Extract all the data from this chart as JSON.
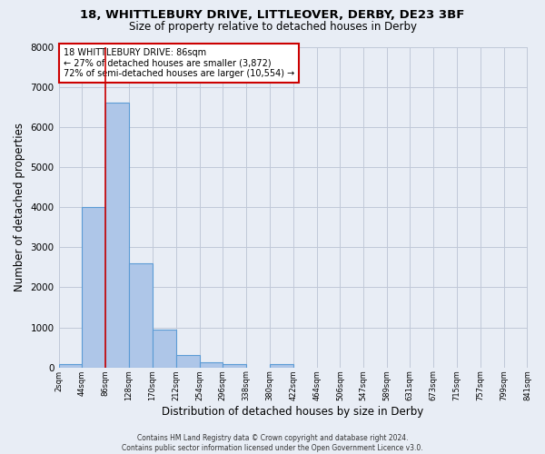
{
  "title": "18, WHITTLEBURY DRIVE, LITTLEOVER, DERBY, DE23 3BF",
  "subtitle": "Size of property relative to detached houses in Derby",
  "xlabel": "Distribution of detached houses by size in Derby",
  "ylabel": "Number of detached properties",
  "bin_edges": [
    2,
    44,
    86,
    128,
    170,
    212,
    254,
    296,
    338,
    380,
    422,
    464,
    506,
    547,
    589,
    631,
    673,
    715,
    757,
    799,
    841
  ],
  "bin_values": [
    75,
    4000,
    6600,
    2600,
    950,
    320,
    120,
    80,
    0,
    75,
    0,
    0,
    0,
    0,
    0,
    0,
    0,
    0,
    0,
    0
  ],
  "bar_color": "#aec6e8",
  "bar_edge_color": "#5b9bd5",
  "property_line_x": 86,
  "property_line_color": "#cc0000",
  "annotation_line1": "18 WHITTLEBURY DRIVE: 86sqm",
  "annotation_line2": "← 27% of detached houses are smaller (3,872)",
  "annotation_line3": "72% of semi-detached houses are larger (10,554) →",
  "ylim": [
    0,
    8000
  ],
  "yticks": [
    0,
    1000,
    2000,
    3000,
    4000,
    5000,
    6000,
    7000,
    8000
  ],
  "tick_labels": [
    "2sqm",
    "44sqm",
    "86sqm",
    "128sqm",
    "170sqm",
    "212sqm",
    "254sqm",
    "296sqm",
    "338sqm",
    "380sqm",
    "422sqm",
    "464sqm",
    "506sqm",
    "547sqm",
    "589sqm",
    "631sqm",
    "673sqm",
    "715sqm",
    "757sqm",
    "799sqm",
    "841sqm"
  ],
  "grid_color": "#c0c8d8",
  "background_color": "#e8edf5",
  "footer_line1": "Contains HM Land Registry data © Crown copyright and database right 2024.",
  "footer_line2": "Contains public sector information licensed under the Open Government Licence v3.0."
}
